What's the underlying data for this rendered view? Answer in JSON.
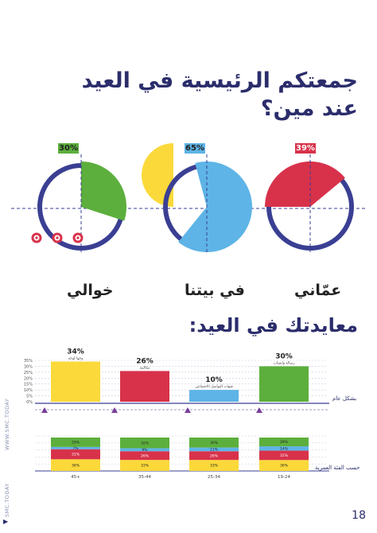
{
  "titles": {
    "main_line1": "جمعتكم الرئيسية في العيد",
    "main_line2": "عند مين؟",
    "section2": "معايدتك في العيد:"
  },
  "colors": {
    "navy": "#3a3f93",
    "green": "#5caf3c",
    "blue": "#5eb4e6",
    "yellow": "#fbd93a",
    "red": "#d8324b",
    "purple": "#7b3f99"
  },
  "chart_data": [
    {
      "type": "pie",
      "title": "جمعتكم الرئيسية في العيد عند مين؟",
      "categories": [
        "عمّاني",
        "في بيتنا",
        "خوالي"
      ],
      "values": [
        39,
        65,
        30
      ],
      "labels": [
        "39%",
        "65%",
        "30%"
      ]
    },
    {
      "type": "bar",
      "title": "معايدتك في العيد:",
      "row_label": "بشكل عام",
      "categories": [
        "وجها لوجه",
        "مكالمة",
        "قنوات التواصل الاجتماعي",
        "رسالة واتساب"
      ],
      "values": [
        34,
        26,
        10,
        30
      ],
      "labels": [
        "34%",
        "26%",
        "10%",
        "30%"
      ],
      "yticks": [
        "35%",
        "30%",
        "25%",
        "20%",
        "15%",
        "10%",
        "5%",
        "0%"
      ],
      "ylim": [
        0,
        35
      ]
    },
    {
      "type": "bar",
      "stacked": true,
      "row_label": "حسب الفئة العمرية",
      "categories": [
        "45+",
        "35-44",
        "25-34",
        "19-24"
      ],
      "series": [
        {
          "color": "#fbd93a",
          "values": [
            36,
            33,
            33,
            36
          ],
          "labels": [
            "36%",
            "33%",
            "33%",
            "36%"
          ]
        },
        {
          "color": "#d8324b",
          "values": [
            31,
            26,
            26,
            31
          ],
          "labels": [
            "31%",
            "26%",
            "26%",
            "31%"
          ]
        },
        {
          "color": "#5eb4e6",
          "values": [
            7,
            9,
            11,
            14
          ],
          "labels": [
            "7%",
            "9%",
            "11%",
            "14%"
          ]
        },
        {
          "color": "#5caf3c",
          "values": [
            29,
            32,
            30,
            29
          ],
          "labels": [
            "29%",
            "32%",
            "30%",
            "29%"
          ]
        }
      ]
    }
  ],
  "footer": {
    "website": "WWW.SMC.TODAY",
    "social": "SMC.TODAY",
    "page_number": "18"
  }
}
